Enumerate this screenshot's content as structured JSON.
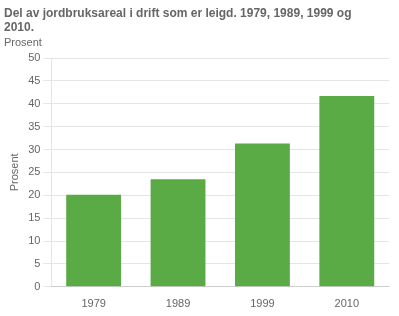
{
  "chart_data": {
    "type": "bar",
    "title": "Del av jordbruksareal i drift som er leigd. 1979, 1989, 1999 og 2010.",
    "subtitle": "Prosent",
    "ylabel": "Prosent",
    "categories": [
      "1979",
      "1989",
      "1999",
      "2010"
    ],
    "values": [
      20.1,
      23.5,
      31.3,
      41.7
    ],
    "color": "#5aaa46",
    "ylim": [
      0,
      50
    ],
    "yticks": [
      0,
      5,
      10,
      15,
      20,
      25,
      30,
      35,
      40,
      45,
      50
    ],
    "grid": true
  }
}
